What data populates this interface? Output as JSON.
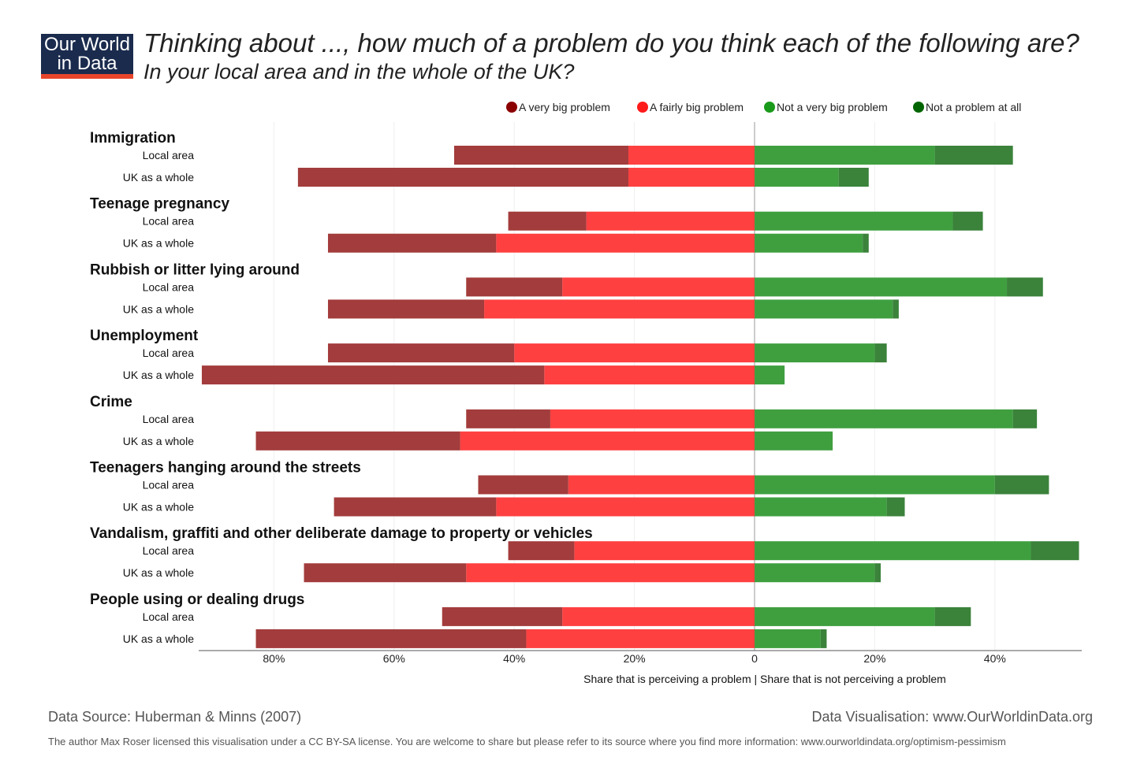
{
  "header": {
    "logo": "Our World in Data",
    "title": "Thinking about ..., how much of a problem do you think each of the following are?",
    "subtitle": "In your local area and in the whole of the UK?"
  },
  "footer": {
    "source": "Data Source: Huberman & Minns (2007)",
    "visualisation": "Data Visualisation: www.OurWorldinData.org",
    "license": "The author Max Roser licensed this visualisation under a CC BY-SA license. You are welcome to share but please refer to its source where you find more information: www.ourworldindata.org/optimism-pessimism"
  },
  "chart_data": {
    "type": "bar",
    "orientation": "horizontal diverging stacked",
    "xlabel": "Share that is perceiving a problem | Share that is not perceiving a problem",
    "x_ticks": [
      {
        "value": -80,
        "label": "80%"
      },
      {
        "value": -60,
        "label": "60%"
      },
      {
        "value": -40,
        "label": "40%"
      },
      {
        "value": -20,
        "label": "20%"
      },
      {
        "value": 0,
        "label": "0"
      },
      {
        "value": 20,
        "label": "20%"
      },
      {
        "value": 40,
        "label": "40%"
      }
    ],
    "xlim": [
      -92,
      54
    ],
    "legend": [
      {
        "name": "A very big problem",
        "color": "#8b0000"
      },
      {
        "name": "A fairly big problem",
        "color": "#ff1a1a"
      },
      {
        "name": "Not a very big problem",
        "color": "#1a9a1a"
      },
      {
        "name": "Not a problem at all",
        "color": "#006400"
      }
    ],
    "bar_colors": {
      "very_big": "#a33c3c",
      "fairly_big": "#ff4040",
      "not_very_big": "#3f9f3f",
      "not_at_all": "#3b823b"
    },
    "groups": [
      {
        "name": "Immigration",
        "rows": [
          {
            "label": "Local area",
            "very_big": 29,
            "fairly_big": 21,
            "not_very_big": 30,
            "not_at_all": 13
          },
          {
            "label": "UK as a whole",
            "very_big": 55,
            "fairly_big": 21,
            "not_very_big": 14,
            "not_at_all": 5
          }
        ]
      },
      {
        "name": "Teenage pregnancy",
        "rows": [
          {
            "label": "Local area",
            "very_big": 13,
            "fairly_big": 28,
            "not_very_big": 33,
            "not_at_all": 5
          },
          {
            "label": "UK as a whole",
            "very_big": 28,
            "fairly_big": 43,
            "not_very_big": 18,
            "not_at_all": 1
          }
        ]
      },
      {
        "name": "Rubbish or litter lying around",
        "rows": [
          {
            "label": "Local area",
            "very_big": 16,
            "fairly_big": 32,
            "not_very_big": 42,
            "not_at_all": 6
          },
          {
            "label": "UK as a whole",
            "very_big": 26,
            "fairly_big": 45,
            "not_very_big": 23,
            "not_at_all": 1
          }
        ]
      },
      {
        "name": "Unemployment",
        "rows": [
          {
            "label": "Local area",
            "very_big": 31,
            "fairly_big": 40,
            "not_very_big": 20,
            "not_at_all": 2
          },
          {
            "label": "UK as a whole",
            "very_big": 57,
            "fairly_big": 35,
            "not_very_big": 5,
            "not_at_all": 0
          }
        ]
      },
      {
        "name": "Crime",
        "rows": [
          {
            "label": "Local area",
            "very_big": 14,
            "fairly_big": 34,
            "not_very_big": 43,
            "not_at_all": 4
          },
          {
            "label": "UK as a whole",
            "very_big": 34,
            "fairly_big": 49,
            "not_very_big": 13,
            "not_at_all": 0
          }
        ]
      },
      {
        "name": "Teenagers hanging around the streets",
        "rows": [
          {
            "label": "Local area",
            "very_big": 15,
            "fairly_big": 31,
            "not_very_big": 40,
            "not_at_all": 9
          },
          {
            "label": "UK as a whole",
            "very_big": 27,
            "fairly_big": 43,
            "not_very_big": 22,
            "not_at_all": 3
          }
        ]
      },
      {
        "name": "Vandalism, graffiti and other deliberate damage to property or vehicles",
        "rows": [
          {
            "label": "Local area",
            "very_big": 11,
            "fairly_big": 30,
            "not_very_big": 46,
            "not_at_all": 8
          },
          {
            "label": "UK as a whole",
            "very_big": 27,
            "fairly_big": 48,
            "not_very_big": 20,
            "not_at_all": 1
          }
        ]
      },
      {
        "name": "People using or dealing drugs",
        "rows": [
          {
            "label": "Local area",
            "very_big": 20,
            "fairly_big": 32,
            "not_very_big": 30,
            "not_at_all": 6
          },
          {
            "label": "UK as a whole",
            "very_big": 45,
            "fairly_big": 38,
            "not_very_big": 11,
            "not_at_all": 1
          }
        ]
      }
    ]
  }
}
